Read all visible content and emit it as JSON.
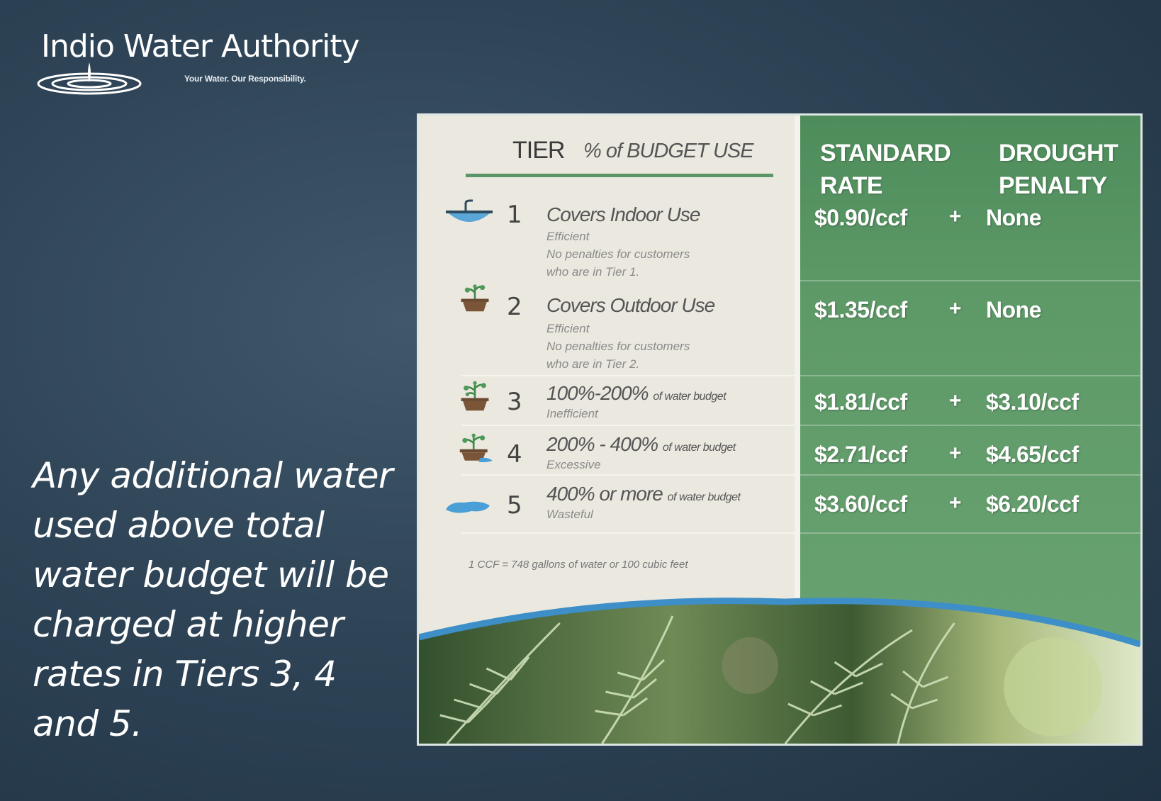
{
  "logo": {
    "title": "Indio Water Authority",
    "tagline": "Your Water. Our Responsibility."
  },
  "left_text": "Any additional water used above total water budget will be charged at higher rates in Tiers 3, 4 and 5.",
  "table": {
    "header": {
      "tier": "TIER",
      "budget": "% of BUDGET USE",
      "standard_line1": "STANDARD",
      "standard_line2": "RATE",
      "drought_line1": "DROUGHT",
      "drought_line2": "PENALTY"
    },
    "tiers": [
      {
        "num": "1",
        "icon": "faucet-water-icon",
        "main": "Covers Indoor Use",
        "main_small": "",
        "sub1": "Efficient",
        "sub2": "No penalties for customers",
        "sub3": "who are in Tier 1.",
        "rate": "$0.90/ccf",
        "plus": "+",
        "penalty": "None"
      },
      {
        "num": "2",
        "icon": "potted-plant-icon",
        "main": "Covers Outdoor Use",
        "main_small": "",
        "sub1": "Efficient",
        "sub2": "No penalties for customers",
        "sub3": "who are in Tier 2.",
        "rate": "$1.35/ccf",
        "plus": "+",
        "penalty": "None"
      },
      {
        "num": "3",
        "icon": "potted-plant-icon",
        "main": "100%-200%",
        "main_small": "of water budget",
        "sub1": "Inefficient",
        "sub2": "",
        "sub3": "",
        "rate": "$1.81/ccf",
        "plus": "+",
        "penalty": "$3.10/ccf"
      },
      {
        "num": "4",
        "icon": "overflowing-plant-icon",
        "main": "200% - 400%",
        "main_small": "of water budget",
        "sub1": "Excessive",
        "sub2": "",
        "sub3": "",
        "rate": "$2.71/ccf",
        "plus": "+",
        "penalty": "$4.65/ccf"
      },
      {
        "num": "5",
        "icon": "water-puddle-icon",
        "main": "400% or more",
        "main_small": "of water budget",
        "sub1": "Wasteful",
        "sub2": "",
        "sub3": "",
        "rate": "$3.60/ccf",
        "plus": "+",
        "penalty": "$6.20/ccf"
      }
    ],
    "footnote": "1 CCF = 748 gallons of water or 100 cubic feet"
  },
  "colors": {
    "background": "#2f4557",
    "panel_green": "#5e9a68",
    "panel_light": "#ebe8df",
    "water_blue": "#3e8fc7"
  }
}
